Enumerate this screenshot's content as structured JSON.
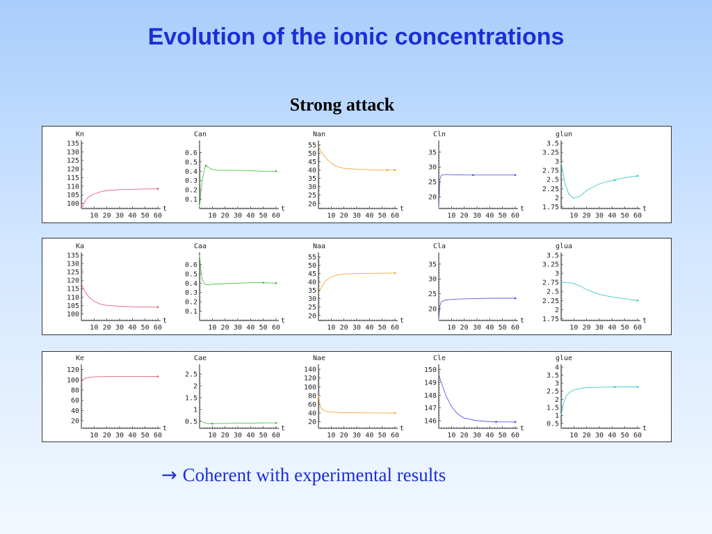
{
  "title": "Evolution of the ionic concentrations",
  "subtitle": "Strong attack",
  "footer": {
    "arrow": "→",
    "text": "Coherent with experimental results"
  },
  "chart_data": [
    {
      "type": "line",
      "name": "Kn",
      "xlabel": "t",
      "x_ticks": [
        10,
        20,
        30,
        40,
        50,
        60
      ],
      "xlim": [
        0,
        60
      ],
      "y_ticks": [
        100,
        105,
        110,
        115,
        120,
        125,
        130,
        135
      ],
      "ylim": [
        97,
        135
      ],
      "color": "#e8607a",
      "points": [
        [
          0,
          97
        ],
        [
          2,
          100
        ],
        [
          4,
          102.5
        ],
        [
          6,
          104
        ],
        [
          10,
          105.5
        ],
        [
          15,
          106.8
        ],
        [
          20,
          107.5
        ],
        [
          30,
          108
        ],
        [
          40,
          108.2
        ],
        [
          50,
          108.4
        ],
        [
          60,
          108.5
        ]
      ],
      "markers": [
        [
          60,
          108.5
        ]
      ]
    },
    {
      "type": "line",
      "name": "Can",
      "xlabel": "t",
      "x_ticks": [
        10,
        20,
        30,
        40,
        50,
        60
      ],
      "xlim": [
        0,
        60
      ],
      "y_ticks": [
        0.1,
        0.2,
        0.3,
        0.4,
        0.5,
        0.6
      ],
      "ylim": [
        0,
        0.7
      ],
      "color": "#43c443",
      "points": [
        [
          0,
          0.02
        ],
        [
          2,
          0.3
        ],
        [
          4,
          0.43
        ],
        [
          5,
          0.46
        ],
        [
          7,
          0.44
        ],
        [
          10,
          0.42
        ],
        [
          15,
          0.41
        ],
        [
          20,
          0.41
        ],
        [
          30,
          0.41
        ],
        [
          40,
          0.405
        ],
        [
          50,
          0.4
        ],
        [
          60,
          0.4
        ]
      ],
      "markers": [
        [
          5,
          0.46
        ],
        [
          60,
          0.4
        ]
      ]
    },
    {
      "type": "line",
      "name": "Nan",
      "xlabel": "t",
      "x_ticks": [
        10,
        20,
        30,
        40,
        50,
        60
      ],
      "xlim": [
        0,
        60
      ],
      "y_ticks": [
        20,
        25,
        30,
        35,
        40,
        45,
        50,
        55
      ],
      "ylim": [
        17,
        56
      ],
      "color": "#f4a640",
      "points": [
        [
          0,
          54
        ],
        [
          3,
          50
        ],
        [
          6,
          47
        ],
        [
          10,
          44
        ],
        [
          15,
          42
        ],
        [
          20,
          41
        ],
        [
          30,
          40.5
        ],
        [
          40,
          40.2
        ],
        [
          50,
          40
        ],
        [
          55,
          40
        ],
        [
          60,
          40
        ]
      ],
      "markers": [
        [
          54,
          40
        ],
        [
          60,
          40
        ]
      ]
    },
    {
      "type": "line",
      "name": "Cln",
      "xlabel": "t",
      "x_ticks": [
        10,
        20,
        30,
        40,
        50,
        60
      ],
      "xlim": [
        0,
        60
      ],
      "y_ticks": [
        20,
        25,
        30,
        35
      ],
      "ylim": [
        16,
        38
      ],
      "color": "#5a5ae0",
      "points": [
        [
          0,
          16
        ],
        [
          0.5,
          22
        ],
        [
          1,
          26
        ],
        [
          2,
          27.2
        ],
        [
          5,
          27.5
        ],
        [
          10,
          27.4
        ],
        [
          20,
          27.3
        ],
        [
          30,
          27.3
        ],
        [
          40,
          27.3
        ],
        [
          50,
          27.3
        ],
        [
          60,
          27.3
        ]
      ],
      "markers": [
        [
          27,
          27.3
        ],
        [
          60,
          27.3
        ]
      ]
    },
    {
      "type": "line",
      "name": "glun",
      "xlabel": "t",
      "x_ticks": [
        10,
        20,
        30,
        40,
        50,
        60
      ],
      "xlim": [
        0,
        60
      ],
      "y_ticks": [
        1.75,
        2,
        2.25,
        2.5,
        2.75,
        3,
        3.25,
        3.5
      ],
      "ylim": [
        1.7,
        3.5
      ],
      "color": "#3ec8c8",
      "points": [
        [
          0,
          2.95
        ],
        [
          3,
          2.4
        ],
        [
          6,
          2.1
        ],
        [
          10,
          1.98
        ],
        [
          15,
          2.05
        ],
        [
          20,
          2.2
        ],
        [
          30,
          2.38
        ],
        [
          40,
          2.48
        ],
        [
          50,
          2.55
        ],
        [
          60,
          2.6
        ]
      ],
      "markers": [
        [
          42,
          2.48
        ],
        [
          60,
          2.6
        ]
      ]
    },
    {
      "type": "line",
      "name": "Ka",
      "xlabel": "t",
      "x_ticks": [
        10,
        20,
        30,
        40,
        50,
        60
      ],
      "xlim": [
        0,
        60
      ],
      "y_ticks": [
        100,
        105,
        110,
        115,
        120,
        125,
        130,
        135
      ],
      "ylim": [
        96,
        135
      ],
      "color": "#e8607a",
      "points": [
        [
          0,
          118
        ],
        [
          3,
          113
        ],
        [
          6,
          110
        ],
        [
          10,
          107.5
        ],
        [
          15,
          105.8
        ],
        [
          20,
          105
        ],
        [
          30,
          104.5
        ],
        [
          40,
          104.2
        ],
        [
          50,
          104
        ],
        [
          60,
          104
        ]
      ],
      "markers": [
        [
          60,
          104
        ]
      ]
    },
    {
      "type": "line",
      "name": "Caa",
      "xlabel": "t",
      "x_ticks": [
        10,
        20,
        30,
        40,
        50,
        60
      ],
      "xlim": [
        0,
        60
      ],
      "y_ticks": [
        0.1,
        0.2,
        0.3,
        0.4,
        0.5,
        0.6
      ],
      "ylim": [
        0,
        0.7
      ],
      "color": "#43c443",
      "points": [
        [
          0,
          0.7
        ],
        [
          1,
          0.55
        ],
        [
          2,
          0.44
        ],
        [
          4,
          0.39
        ],
        [
          7,
          0.38
        ],
        [
          10,
          0.39
        ],
        [
          20,
          0.395
        ],
        [
          30,
          0.4
        ],
        [
          40,
          0.405
        ],
        [
          50,
          0.405
        ],
        [
          60,
          0.4
        ]
      ],
      "markers": [
        [
          50,
          0.405
        ],
        [
          60,
          0.4
        ]
      ]
    },
    {
      "type": "line",
      "name": "Naa",
      "xlabel": "t",
      "x_ticks": [
        10,
        20,
        30,
        40,
        50,
        60
      ],
      "xlim": [
        0,
        60
      ],
      "y_ticks": [
        20,
        25,
        30,
        35,
        40,
        45,
        50,
        55
      ],
      "ylim": [
        17,
        56
      ],
      "color": "#f4a640",
      "points": [
        [
          0,
          33
        ],
        [
          3,
          38
        ],
        [
          6,
          41
        ],
        [
          10,
          43
        ],
        [
          15,
          44.2
        ],
        [
          20,
          44.7
        ],
        [
          30,
          45
        ],
        [
          40,
          45.1
        ],
        [
          50,
          45.2
        ],
        [
          60,
          45.3
        ]
      ],
      "markers": [
        [
          60,
          45.3
        ]
      ]
    },
    {
      "type": "line",
      "name": "Cla",
      "xlabel": "t",
      "x_ticks": [
        10,
        20,
        30,
        40,
        50,
        60
      ],
      "xlim": [
        0,
        60
      ],
      "y_ticks": [
        20,
        25,
        30,
        35
      ],
      "ylim": [
        16,
        38
      ],
      "color": "#5a5ae0",
      "points": [
        [
          0,
          16
        ],
        [
          0.5,
          19
        ],
        [
          1,
          21
        ],
        [
          2,
          22.3
        ],
        [
          5,
          22.9
        ],
        [
          10,
          23.1
        ],
        [
          20,
          23.3
        ],
        [
          30,
          23.4
        ],
        [
          40,
          23.5
        ],
        [
          50,
          23.5
        ],
        [
          60,
          23.5
        ]
      ],
      "markers": [
        [
          60,
          23.5
        ]
      ]
    },
    {
      "type": "line",
      "name": "glua",
      "xlabel": "t",
      "x_ticks": [
        10,
        20,
        30,
        40,
        50,
        60
      ],
      "xlim": [
        0,
        60
      ],
      "y_ticks": [
        1.75,
        2,
        2.25,
        2.5,
        2.75,
        3,
        3.25,
        3.5
      ],
      "ylim": [
        1.7,
        3.5
      ],
      "color": "#3ec8c8",
      "points": [
        [
          0,
          2.75
        ],
        [
          5,
          2.75
        ],
        [
          10,
          2.72
        ],
        [
          15,
          2.65
        ],
        [
          20,
          2.55
        ],
        [
          30,
          2.42
        ],
        [
          40,
          2.35
        ],
        [
          50,
          2.3
        ],
        [
          60,
          2.25
        ]
      ],
      "markers": [
        [
          60,
          2.25
        ]
      ]
    },
    {
      "type": "line",
      "name": "Ke",
      "xlabel": "t",
      "x_ticks": [
        10,
        20,
        30,
        40,
        50,
        60
      ],
      "xlim": [
        0,
        60
      ],
      "y_ticks": [
        20,
        40,
        60,
        80,
        100,
        120
      ],
      "ylim": [
        5,
        125
      ],
      "color": "#e8607a",
      "points": [
        [
          0,
          95
        ],
        [
          1,
          100
        ],
        [
          3,
          103
        ],
        [
          6,
          105
        ],
        [
          10,
          106
        ],
        [
          20,
          106.5
        ],
        [
          30,
          106.5
        ],
        [
          40,
          106.5
        ],
        [
          50,
          106.5
        ],
        [
          60,
          106.5
        ]
      ],
      "markers": [
        [
          60,
          106.5
        ]
      ]
    },
    {
      "type": "line",
      "name": "Cae",
      "xlabel": "t",
      "x_ticks": [
        10,
        20,
        30,
        40,
        50,
        60
      ],
      "xlim": [
        0,
        60
      ],
      "y_ticks": [
        0.5,
        1,
        1.5,
        2,
        2.5
      ],
      "ylim": [
        0.2,
        2.8
      ],
      "color": "#43c443",
      "points": [
        [
          0,
          0.55
        ],
        [
          3,
          0.45
        ],
        [
          6,
          0.4
        ],
        [
          10,
          0.4
        ],
        [
          20,
          0.41
        ],
        [
          30,
          0.42
        ],
        [
          40,
          0.42
        ],
        [
          50,
          0.43
        ],
        [
          60,
          0.43
        ]
      ],
      "markers": [
        [
          10,
          0.4
        ],
        [
          60,
          0.43
        ]
      ]
    },
    {
      "type": "line",
      "name": "Nae",
      "xlabel": "t",
      "x_ticks": [
        10,
        20,
        30,
        40,
        50,
        60
      ],
      "xlim": [
        0,
        60
      ],
      "y_ticks": [
        20,
        40,
        60,
        80,
        100,
        120,
        140
      ],
      "ylim": [
        5,
        145
      ],
      "color": "#f4a640",
      "points": [
        [
          0,
          80
        ],
        [
          1,
          58
        ],
        [
          3,
          48
        ],
        [
          6,
          44
        ],
        [
          10,
          42
        ],
        [
          20,
          41
        ],
        [
          30,
          40.5
        ],
        [
          40,
          40.3
        ],
        [
          50,
          40.2
        ],
        [
          60,
          40
        ]
      ],
      "markers": [
        [
          60,
          40
        ]
      ]
    },
    {
      "type": "line",
      "name": "Cle",
      "xlabel": "t",
      "x_ticks": [
        10,
        20,
        30,
        40,
        50,
        60
      ],
      "xlim": [
        0,
        60
      ],
      "y_ticks": [
        146,
        147,
        148,
        149,
        150
      ],
      "ylim": [
        145.4,
        150.2
      ],
      "color": "#5a5ae0",
      "points": [
        [
          0,
          149.6
        ],
        [
          3,
          148.7
        ],
        [
          6,
          147.9
        ],
        [
          10,
          147.1
        ],
        [
          15,
          146.5
        ],
        [
          20,
          146.2
        ],
        [
          30,
          146
        ],
        [
          40,
          145.92
        ],
        [
          50,
          145.9
        ],
        [
          60,
          145.9
        ]
      ],
      "markers": [
        [
          45,
          145.9
        ],
        [
          60,
          145.9
        ]
      ]
    },
    {
      "type": "line",
      "name": "glue",
      "xlabel": "t",
      "x_ticks": [
        10,
        20,
        30,
        40,
        50,
        60
      ],
      "xlim": [
        0,
        60
      ],
      "y_ticks": [
        0.5,
        1,
        1.5,
        2,
        2.5,
        3,
        3.5,
        4
      ],
      "ylim": [
        0.2,
        4
      ],
      "color": "#3ec8c8",
      "points": [
        [
          0,
          1.0
        ],
        [
          2,
          1.8
        ],
        [
          4,
          2.2
        ],
        [
          7,
          2.45
        ],
        [
          10,
          2.58
        ],
        [
          15,
          2.68
        ],
        [
          20,
          2.72
        ],
        [
          30,
          2.75
        ],
        [
          40,
          2.76
        ],
        [
          50,
          2.77
        ],
        [
          60,
          2.77
        ]
      ],
      "markers": [
        [
          42,
          2.76
        ],
        [
          60,
          2.77
        ]
      ]
    }
  ]
}
